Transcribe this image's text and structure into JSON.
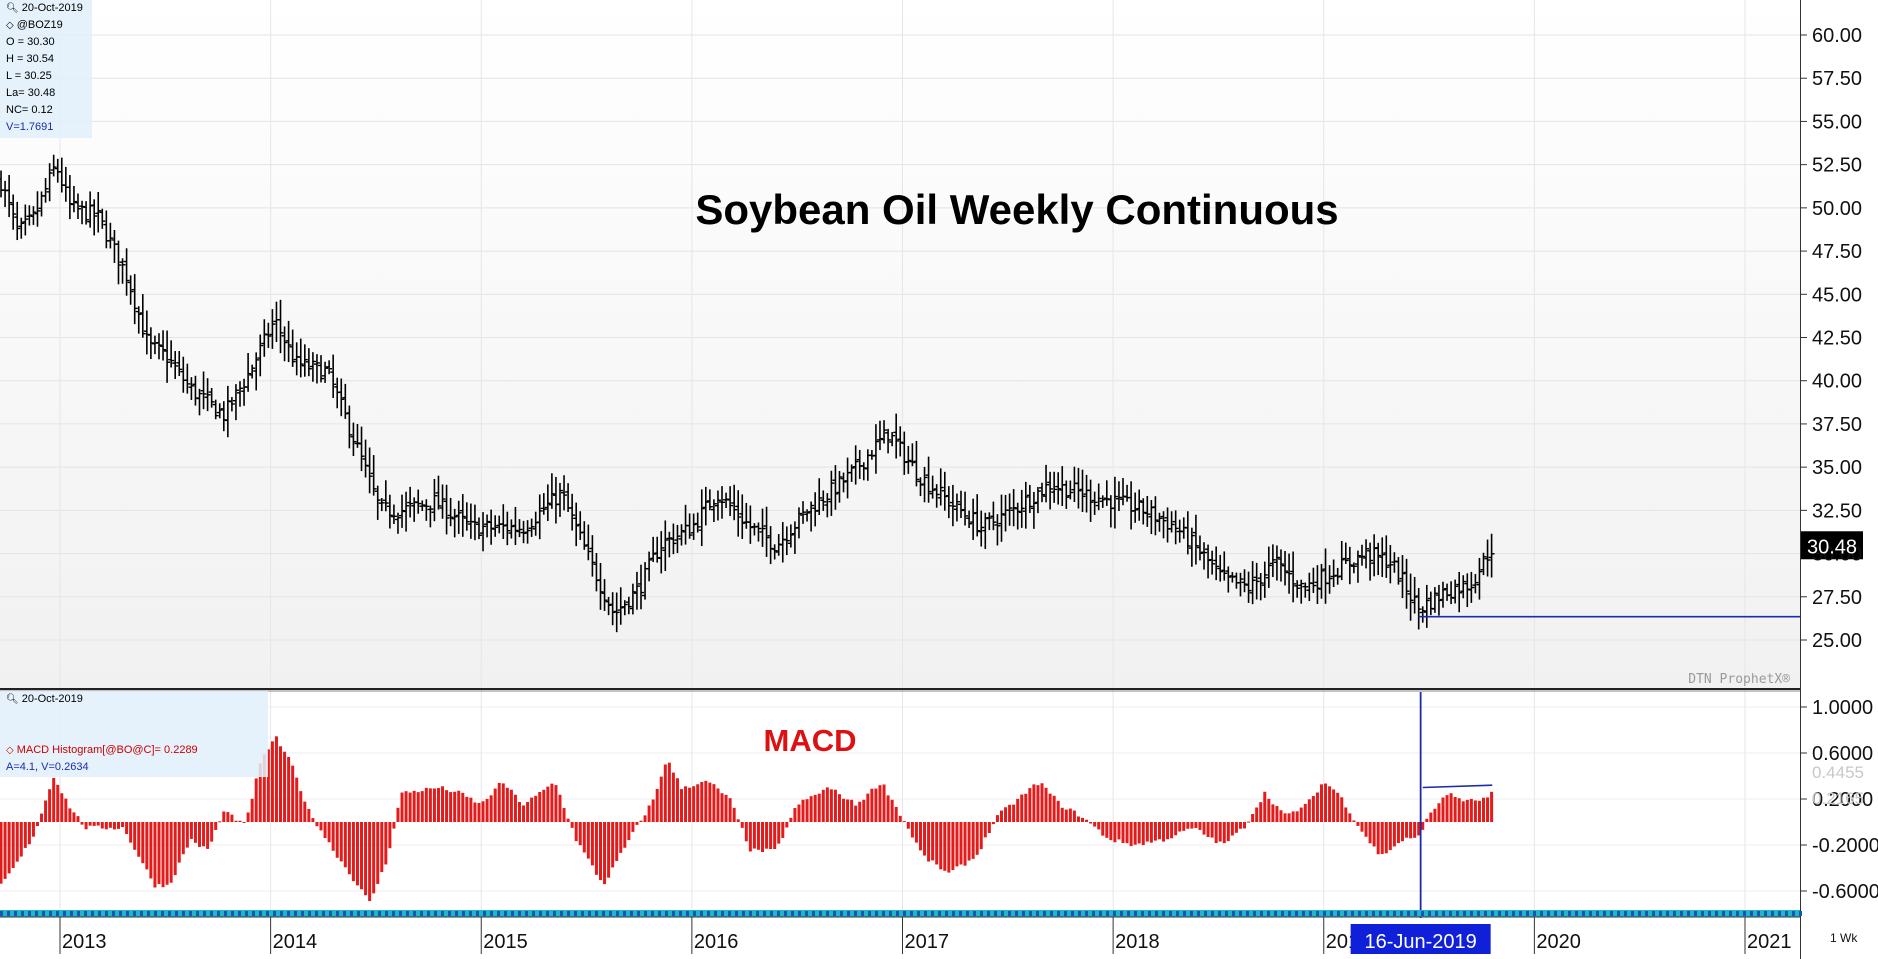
{
  "upper_info": {
    "date": "20-Oct-2019",
    "symbol": "@BOZ19",
    "open": "O = 30.30",
    "high": "H = 30.54",
    "low": "L = 30.25",
    "last": "La= 30.48",
    "net_change": "NC= 0.12",
    "volume": "V=1.7691"
  },
  "lower_info": {
    "date": "20-Oct-2019",
    "histogram": "MACD Histogram[@BO@C]= 0.2289",
    "stats": "A=4.1, V=0.2634"
  },
  "colors": {
    "price_bars": "#000000",
    "hist_positive": "#e31b1b",
    "hist_negative": "#e31b1b",
    "support_line": "#1a2bb0",
    "cursor_line": "#1a2bb0",
    "macd_title": "#dd1111",
    "date_strip": "#1fb6c6",
    "last_price_bg": "#000000"
  },
  "chart_data": [
    {
      "type": "ohlc",
      "title": "Soybean Oil Weekly Continuous",
      "watermark": "DTN ProphetX®",
      "y_ticks": [
        "60.00",
        "57.50",
        "55.00",
        "52.50",
        "50.00",
        "47.50",
        "45.00",
        "42.50",
        "40.00",
        "37.50",
        "35.00",
        "32.50",
        "30.00",
        "27.50",
        "25.00"
      ],
      "ylim": [
        23.0,
        62.0
      ],
      "last_price": "30.48",
      "support_level": 26.35,
      "support_start": 2019.45,
      "x_range": [
        2012.72,
        2021.38
      ],
      "anchors": [
        [
          2012.72,
          51.5
        ],
        [
          2012.8,
          48.5
        ],
        [
          2012.88,
          49.5
        ],
        [
          2012.98,
          52.5
        ],
        [
          2013.05,
          50.0
        ],
        [
          2013.18,
          49.5
        ],
        [
          2013.32,
          46.0
        ],
        [
          2013.42,
          42.0
        ],
        [
          2013.5,
          41.5
        ],
        [
          2013.62,
          39.5
        ],
        [
          2013.78,
          38.0
        ],
        [
          2013.9,
          40.5
        ],
        [
          2014.02,
          43.5
        ],
        [
          2014.12,
          41.0
        ],
        [
          2014.27,
          40.5
        ],
        [
          2014.4,
          36.5
        ],
        [
          2014.52,
          32.5
        ],
        [
          2014.62,
          32.5
        ],
        [
          2014.78,
          33.0
        ],
        [
          2014.95,
          31.5
        ],
        [
          2015.05,
          31.5
        ],
        [
          2015.2,
          31.5
        ],
        [
          2015.38,
          33.5
        ],
        [
          2015.5,
          30.0
        ],
        [
          2015.63,
          26.5
        ],
        [
          2015.75,
          28.0
        ],
        [
          2015.85,
          30.5
        ],
        [
          2016.0,
          31.5
        ],
        [
          2016.12,
          33.5
        ],
        [
          2016.28,
          31.5
        ],
        [
          2016.4,
          30.5
        ],
        [
          2016.55,
          32.5
        ],
        [
          2016.75,
          34.5
        ],
        [
          2016.93,
          37.0
        ],
        [
          2017.08,
          34.5
        ],
        [
          2017.22,
          33.0
        ],
        [
          2017.38,
          31.5
        ],
        [
          2017.52,
          32.5
        ],
        [
          2017.7,
          34.0
        ],
        [
          2017.85,
          33.5
        ],
        [
          2018.0,
          33.0
        ],
        [
          2018.15,
          32.5
        ],
        [
          2018.3,
          31.5
        ],
        [
          2018.42,
          30.0
        ],
        [
          2018.52,
          28.5
        ],
        [
          2018.65,
          28.0
        ],
        [
          2018.77,
          29.5
        ],
        [
          2018.9,
          28.0
        ],
        [
          2019.05,
          29.0
        ],
        [
          2019.2,
          30.0
        ],
        [
          2019.32,
          29.5
        ],
        [
          2019.45,
          26.8
        ],
        [
          2019.58,
          27.8
        ],
        [
          2019.7,
          28.3
        ],
        [
          2019.8,
          30.4
        ]
      ]
    },
    {
      "type": "bar",
      "title": "MACD",
      "series_name": "MACD Histogram[@BO@C]",
      "y_ticks": [
        "1.0000",
        "0.6000",
        "0.2000",
        "-0.2000",
        "-0.6000"
      ],
      "faded_ticks": [
        "0.4455",
        "0.2165"
      ],
      "ylim": [
        -0.8,
        1.1
      ],
      "anchors": [
        [
          2012.72,
          -0.55
        ],
        [
          2012.8,
          -0.35
        ],
        [
          2012.88,
          -0.1
        ],
        [
          2012.97,
          0.4
        ],
        [
          2013.04,
          0.15
        ],
        [
          2013.12,
          -0.05
        ],
        [
          2013.3,
          -0.05
        ],
        [
          2013.45,
          -0.55
        ],
        [
          2013.52,
          -0.55
        ],
        [
          2013.62,
          -0.15
        ],
        [
          2013.7,
          -0.25
        ],
        [
          2013.78,
          0.1
        ],
        [
          2013.88,
          -0.03
        ],
        [
          2013.95,
          0.5
        ],
        [
          2014.02,
          0.75
        ],
        [
          2014.1,
          0.5
        ],
        [
          2014.18,
          0.1
        ],
        [
          2014.3,
          -0.25
        ],
        [
          2014.47,
          -0.7
        ],
        [
          2014.55,
          -0.35
        ],
        [
          2014.62,
          0.25
        ],
        [
          2014.8,
          0.3
        ],
        [
          2014.9,
          0.25
        ],
        [
          2015.0,
          0.15
        ],
        [
          2015.1,
          0.35
        ],
        [
          2015.2,
          0.15
        ],
        [
          2015.28,
          0.25
        ],
        [
          2015.35,
          0.35
        ],
        [
          2015.45,
          -0.15
        ],
        [
          2015.58,
          -0.55
        ],
        [
          2015.72,
          -0.1
        ],
        [
          2015.82,
          0.2
        ],
        [
          2015.88,
          0.55
        ],
        [
          2015.95,
          0.3
        ],
        [
          2016.08,
          0.35
        ],
        [
          2016.18,
          0.2
        ],
        [
          2016.28,
          -0.25
        ],
        [
          2016.4,
          -0.25
        ],
        [
          2016.5,
          0.15
        ],
        [
          2016.65,
          0.3
        ],
        [
          2016.78,
          0.15
        ],
        [
          2016.9,
          0.35
        ],
        [
          2016.98,
          0.1
        ],
        [
          2017.1,
          -0.3
        ],
        [
          2017.22,
          -0.45
        ],
        [
          2017.35,
          -0.3
        ],
        [
          2017.45,
          0.05
        ],
        [
          2017.55,
          0.2
        ],
        [
          2017.65,
          0.35
        ],
        [
          2017.75,
          0.15
        ],
        [
          2017.85,
          0.05
        ],
        [
          2017.98,
          -0.15
        ],
        [
          2018.1,
          -0.2
        ],
        [
          2018.25,
          -0.15
        ],
        [
          2018.38,
          -0.05
        ],
        [
          2018.52,
          -0.2
        ],
        [
          2018.62,
          -0.05
        ],
        [
          2018.72,
          0.25
        ],
        [
          2018.82,
          0.05
        ],
        [
          2018.92,
          0.15
        ],
        [
          2019.0,
          0.35
        ],
        [
          2019.07,
          0.25
        ],
        [
          2019.17,
          -0.05
        ],
        [
          2019.27,
          -0.3
        ],
        [
          2019.38,
          -0.15
        ],
        [
          2019.44,
          -0.15
        ],
        [
          2019.5,
          0.05
        ],
        [
          2019.58,
          0.25
        ],
        [
          2019.68,
          0.18
        ],
        [
          2019.77,
          0.2
        ],
        [
          2019.8,
          0.25
        ]
      ],
      "signal_segment": {
        "start": 2019.47,
        "end": 2019.8,
        "from": 0.3,
        "to": 0.32
      }
    }
  ],
  "time_axis": {
    "years": [
      "2013",
      "2014",
      "2015",
      "2016",
      "2017",
      "2018",
      "2019",
      "2020",
      "2021"
    ],
    "cursor_date": "16-Jun-2019",
    "cursor_position": 2019.46,
    "period": "1 Wk"
  }
}
